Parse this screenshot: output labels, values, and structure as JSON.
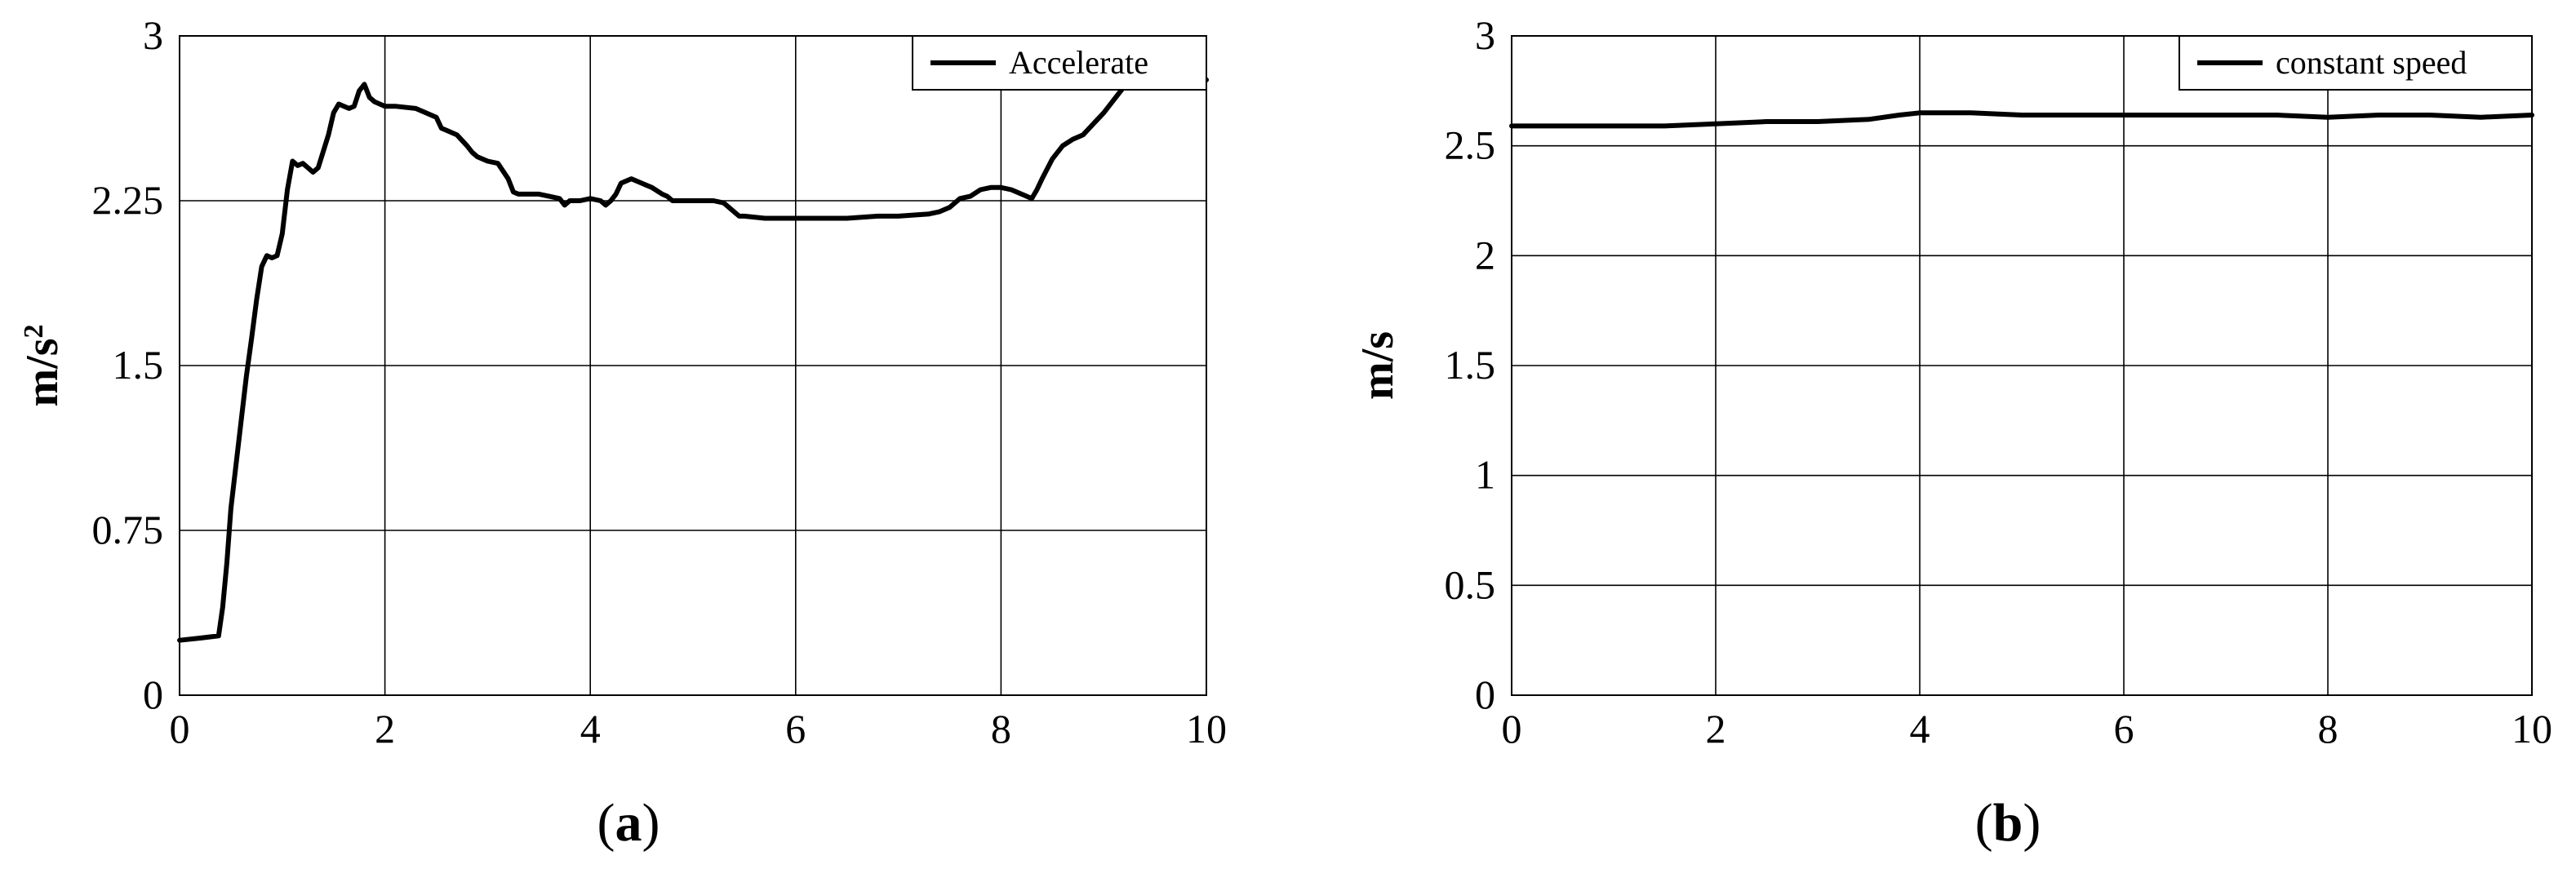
{
  "chart_data": [
    {
      "type": "line",
      "panel_label": {
        "open": "(",
        "letter": "a",
        "close": ")"
      },
      "ylabel": {
        "base": "m/s",
        "sup": "2"
      },
      "xlabel": "",
      "xlim": [
        0,
        10
      ],
      "ylim": [
        0,
        3
      ],
      "xticks": [
        "0",
        "2",
        "4",
        "6",
        "8",
        "10"
      ],
      "yticks": [
        "0",
        "0.75",
        "1.5",
        "2.25",
        "3"
      ],
      "xtick_values": [
        0,
        2,
        4,
        6,
        8,
        10
      ],
      "ytick_values": [
        0,
        0.75,
        1.5,
        2.25,
        3
      ],
      "grid": true,
      "legend_position": "top-right",
      "series": [
        {
          "name": "Accelerate",
          "color": "#000000",
          "x": [
            0,
            0.2,
            0.38,
            0.42,
            0.46,
            0.5,
            0.55,
            0.6,
            0.65,
            0.7,
            0.75,
            0.8,
            0.85,
            0.9,
            0.95,
            1.0,
            1.05,
            1.1,
            1.15,
            1.2,
            1.25,
            1.3,
            1.35,
            1.45,
            1.5,
            1.55,
            1.6,
            1.65,
            1.7,
            1.75,
            1.8,
            1.85,
            1.9,
            1.95,
            2.0,
            2.1,
            2.3,
            2.5,
            2.55,
            2.6,
            2.7,
            2.8,
            2.85,
            2.9,
            3.0,
            3.1,
            3.2,
            3.25,
            3.3,
            3.5,
            3.6,
            3.7,
            3.75,
            3.8,
            3.9,
            4.0,
            4.1,
            4.15,
            4.2,
            4.25,
            4.3,
            4.4,
            4.5,
            4.6,
            4.7,
            4.75,
            4.8,
            4.9,
            5.0,
            5.2,
            5.3,
            5.4,
            5.45,
            5.5,
            5.7,
            6.0,
            6.5,
            6.8,
            7.0,
            7.3,
            7.4,
            7.5,
            7.6,
            7.7,
            7.8,
            7.9,
            8.0,
            8.1,
            8.2,
            8.3,
            8.35,
            8.4,
            8.5,
            8.6,
            8.7,
            8.8,
            8.9,
            9.0,
            9.1,
            9.2,
            10.0
          ],
          "y": [
            0.25,
            0.26,
            0.27,
            0.4,
            0.6,
            0.85,
            1.05,
            1.25,
            1.45,
            1.62,
            1.8,
            1.95,
            2.0,
            1.99,
            2.0,
            2.1,
            2.3,
            2.43,
            2.41,
            2.42,
            2.4,
            2.38,
            2.4,
            2.55,
            2.65,
            2.69,
            2.68,
            2.67,
            2.68,
            2.75,
            2.78,
            2.72,
            2.7,
            2.69,
            2.68,
            2.68,
            2.67,
            2.63,
            2.58,
            2.57,
            2.55,
            2.5,
            2.47,
            2.45,
            2.43,
            2.42,
            2.35,
            2.29,
            2.28,
            2.28,
            2.27,
            2.26,
            2.23,
            2.25,
            2.25,
            2.26,
            2.25,
            2.23,
            2.25,
            2.28,
            2.33,
            2.35,
            2.33,
            2.31,
            2.28,
            2.27,
            2.25,
            2.25,
            2.25,
            2.25,
            2.24,
            2.2,
            2.18,
            2.18,
            2.17,
            2.17,
            2.17,
            2.18,
            2.18,
            2.19,
            2.2,
            2.22,
            2.26,
            2.27,
            2.3,
            2.31,
            2.31,
            2.3,
            2.28,
            2.26,
            2.3,
            2.35,
            2.44,
            2.5,
            2.53,
            2.55,
            2.6,
            2.65,
            2.71,
            2.77,
            2.8
          ]
        }
      ]
    },
    {
      "type": "line",
      "panel_label": {
        "open": "(",
        "letter": "b",
        "close": ")"
      },
      "ylabel": {
        "base": "m/s",
        "sup": ""
      },
      "xlabel": "",
      "xlim": [
        0,
        10
      ],
      "ylim": [
        0,
        3
      ],
      "xticks": [
        "0",
        "2",
        "4",
        "6",
        "8",
        "10"
      ],
      "yticks": [
        "0",
        "0.5",
        "1",
        "1.5",
        "2",
        "2.5",
        "3"
      ],
      "xtick_values": [
        0,
        2,
        4,
        6,
        8,
        10
      ],
      "ytick_values": [
        0,
        0.5,
        1,
        1.5,
        2,
        2.5,
        3
      ],
      "grid": true,
      "legend_position": "top-right",
      "series": [
        {
          "name": "constant speed",
          "color": "#000000",
          "x": [
            0,
            0.5,
            1.0,
            1.5,
            2.0,
            2.5,
            3.0,
            3.5,
            3.8,
            4.0,
            4.5,
            5.0,
            5.5,
            6.0,
            6.5,
            7.0,
            7.5,
            8.0,
            8.5,
            9.0,
            9.5,
            10.0
          ],
          "y": [
            2.59,
            2.59,
            2.59,
            2.59,
            2.6,
            2.61,
            2.61,
            2.62,
            2.64,
            2.65,
            2.65,
            2.64,
            2.64,
            2.64,
            2.64,
            2.64,
            2.64,
            2.63,
            2.64,
            2.64,
            2.63,
            2.64
          ]
        }
      ]
    }
  ]
}
